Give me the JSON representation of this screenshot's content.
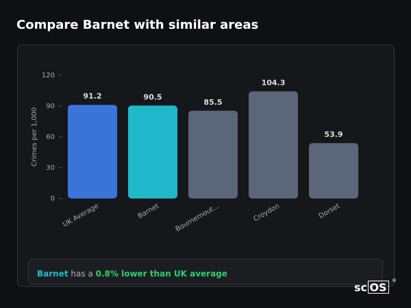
{
  "chart_data": {
    "type": "bar",
    "title": "Compare Barnet with similar areas",
    "y_label": "Crimes per 1,000",
    "categories": [
      "UK Average",
      "Barnet",
      "Bournemout...",
      "Croydon",
      "Dorset"
    ],
    "values": [
      91.2,
      90.5,
      85.5,
      104.3,
      53.9
    ],
    "colors": [
      "#3b74d9",
      "#22b8cc",
      "#5b6678",
      "#5b6678",
      "#5b6678"
    ],
    "ylim": [
      0,
      120
    ],
    "yticks": [
      0,
      30,
      60,
      90,
      120
    ],
    "grid": false
  },
  "summary": {
    "area": "Barnet",
    "text": "has a",
    "comparison": "0.8% lower than UK average"
  },
  "logo": {
    "prefix": "sc",
    "boxed": "OS",
    "mark": "®"
  }
}
